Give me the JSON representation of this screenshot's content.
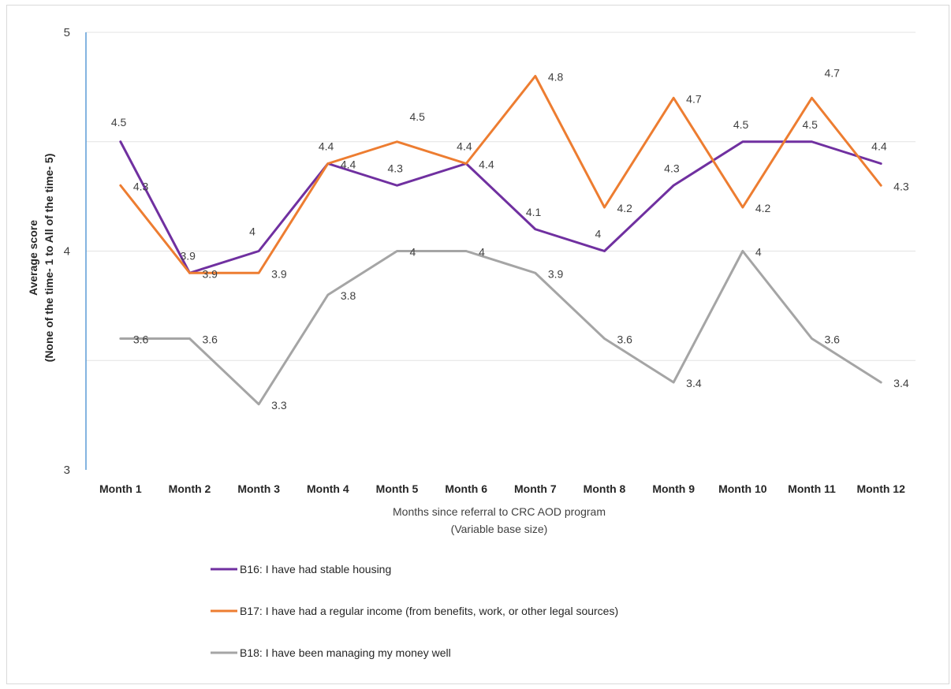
{
  "chart_data": {
    "type": "line",
    "categories": [
      "Month 1",
      "Month 2",
      "Month 3",
      "Month 4",
      "Month 5",
      "Month 6",
      "Month 7",
      "Month 8",
      "Month 9",
      "Month 10",
      "Month 11",
      "Month 12"
    ],
    "series": [
      {
        "name": "B16: I have had stable housing",
        "color": "#7030a0",
        "values": [
          4.5,
          3.9,
          4,
          4.4,
          4.3,
          4.4,
          4.1,
          4,
          4.3,
          4.5,
          4.5,
          4.4
        ]
      },
      {
        "name": "B17: I have had a regular income (from benefits, work, or other legal sources)",
        "color": "#ed7d31",
        "values": [
          4.3,
          3.9,
          3.9,
          4.4,
          4.5,
          4.4,
          4.8,
          4.2,
          4.7,
          4.2,
          4.7,
          4.3
        ]
      },
      {
        "name": "B18: I have been managing my money well",
        "color": "#a5a5a5",
        "values": [
          3.6,
          3.6,
          3.3,
          3.8,
          4,
          4,
          3.9,
          3.6,
          3.4,
          4,
          3.6,
          3.4
        ]
      }
    ],
    "ylabel_line1": "Average  score",
    "ylabel_line2": "(None of the time- 1 to All of the time- 5)",
    "xlabel_line1": "Months since referral to CRC AOD program",
    "xlabel_line2": "(Variable base size)",
    "ylim": [
      3,
      5
    ],
    "yticks": [
      3,
      4,
      5
    ],
    "grid": true,
    "legend_position": "bottom-left"
  }
}
